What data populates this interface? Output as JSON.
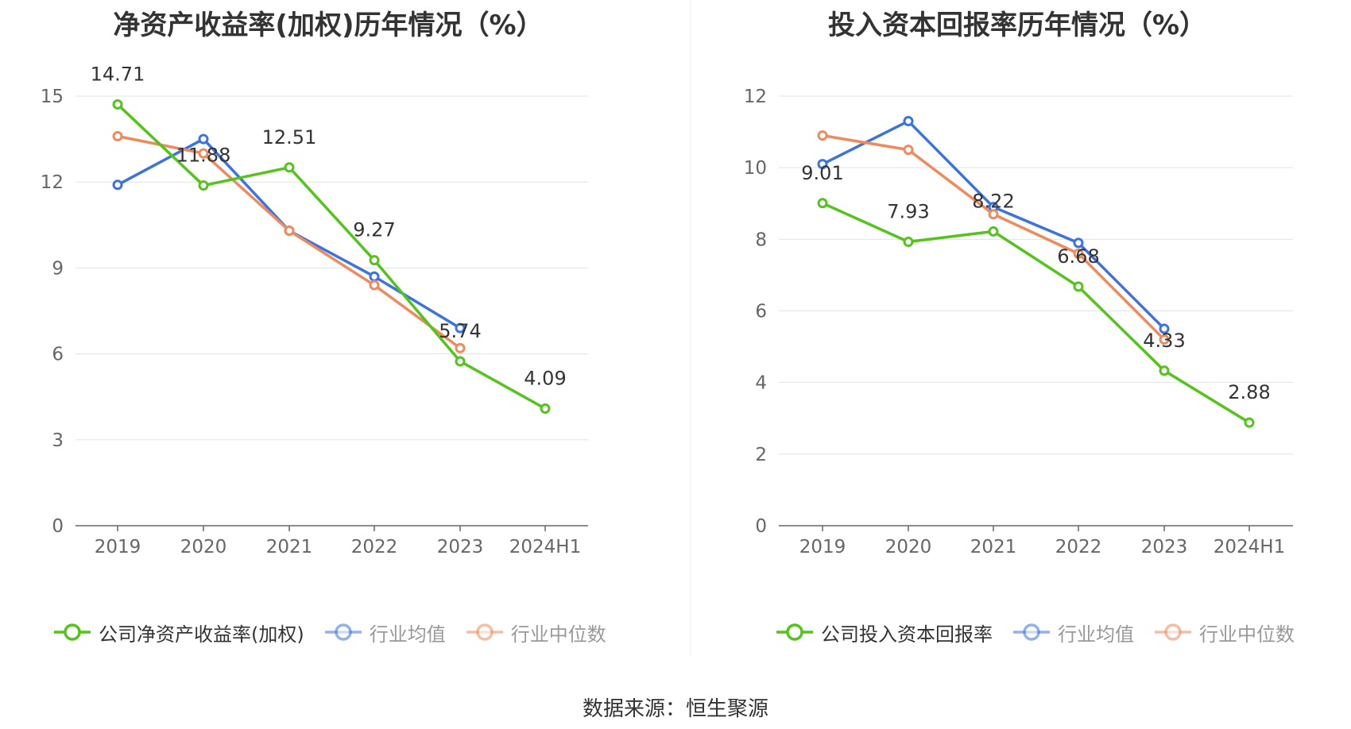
{
  "source_label": "数据来源：恒生聚源",
  "chart_data": [
    {
      "type": "line",
      "title": "净资产收益率(加权)历年情况（%）",
      "categories": [
        "2019",
        "2020",
        "2021",
        "2022",
        "2023",
        "2024H1"
      ],
      "ylim": [
        0,
        15
      ],
      "yticks": [
        0,
        3,
        6,
        9,
        12,
        15
      ],
      "grid": true,
      "legend_position": "bottom",
      "series": [
        {
          "name": "公司净资产收益率(加权)",
          "color": "#52c41a",
          "values": [
            14.71,
            11.88,
            12.51,
            9.27,
            5.74,
            4.09
          ],
          "labels": [
            "14.71",
            "11.88",
            "12.51",
            "9.27",
            "5.74",
            "4.09"
          ]
        },
        {
          "name": "行业均值",
          "color": "#3b73e0",
          "values": [
            11.9,
            13.5,
            10.3,
            8.7,
            6.9,
            null
          ]
        },
        {
          "name": "行业中位数",
          "color": "#f08a5d",
          "values": [
            13.6,
            13.0,
            10.3,
            8.4,
            6.2,
            null
          ]
        }
      ]
    },
    {
      "type": "line",
      "title": "投入资本回报率历年情况（%）",
      "categories": [
        "2019",
        "2020",
        "2021",
        "2022",
        "2023",
        "2024H1"
      ],
      "ylim": [
        0,
        12
      ],
      "yticks": [
        0,
        2,
        4,
        6,
        8,
        10,
        12
      ],
      "grid": true,
      "legend_position": "bottom",
      "series": [
        {
          "name": "公司投入资本回报率",
          "color": "#52c41a",
          "values": [
            9.01,
            7.93,
            8.22,
            6.68,
            4.33,
            2.88
          ],
          "labels": [
            "9.01",
            "7.93",
            "8.22",
            "6.68",
            "4.33",
            "2.88"
          ]
        },
        {
          "name": "行业均值",
          "color": "#3b73e0",
          "values": [
            10.1,
            11.3,
            8.9,
            7.9,
            5.5,
            null
          ]
        },
        {
          "name": "行业中位数",
          "color": "#f08a5d",
          "values": [
            10.9,
            10.5,
            8.7,
            7.6,
            5.2,
            null
          ]
        }
      ]
    }
  ]
}
